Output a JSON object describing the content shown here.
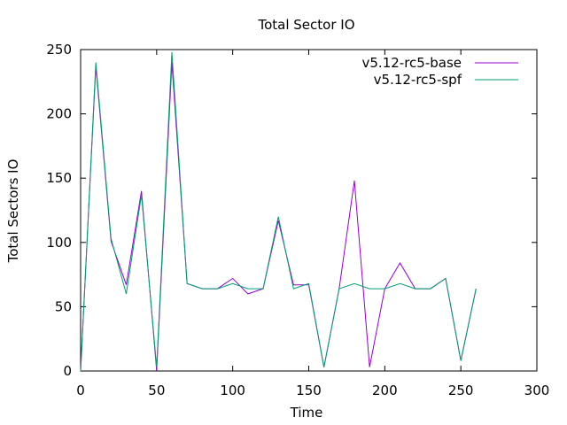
{
  "chart_data": {
    "type": "line",
    "title": "Total Sector IO",
    "xlabel": "Time",
    "ylabel": "Total Sectors IO",
    "xlim": [
      0,
      300
    ],
    "ylim": [
      0,
      250
    ],
    "xticks": [
      0,
      50,
      100,
      150,
      200,
      250,
      300
    ],
    "yticks": [
      0,
      50,
      100,
      150,
      200,
      250
    ],
    "xtick_labels": [
      "0",
      "50",
      "100",
      "150",
      "200",
      "250",
      "300"
    ],
    "ytick_labels": [
      "0",
      "50",
      "100",
      "150",
      "200",
      "250"
    ],
    "grid": false,
    "legend_position": "top-right",
    "x": [
      0,
      10,
      20,
      30,
      40,
      50,
      60,
      70,
      80,
      90,
      100,
      110,
      120,
      130,
      140,
      150,
      160,
      170,
      180,
      190,
      200,
      210,
      220,
      230,
      240,
      250,
      260
    ],
    "series": [
      {
        "name": "v5.12-rc5-base",
        "color": "#9400d3",
        "values": [
          0,
          237,
          101,
          67,
          140,
          0,
          240,
          68,
          64,
          64,
          72,
          60,
          64,
          117,
          67,
          67,
          3,
          64,
          148,
          3,
          64,
          84,
          64,
          64,
          72,
          8,
          64
        ]
      },
      {
        "name": "v5.12-rc5-spf",
        "color": "#009e73",
        "values": [
          0,
          240,
          103,
          60,
          137,
          3,
          248,
          68,
          64,
          64,
          68,
          64,
          64,
          120,
          64,
          68,
          3,
          64,
          68,
          64,
          64,
          68,
          64,
          64,
          72,
          8,
          64
        ]
      }
    ]
  }
}
